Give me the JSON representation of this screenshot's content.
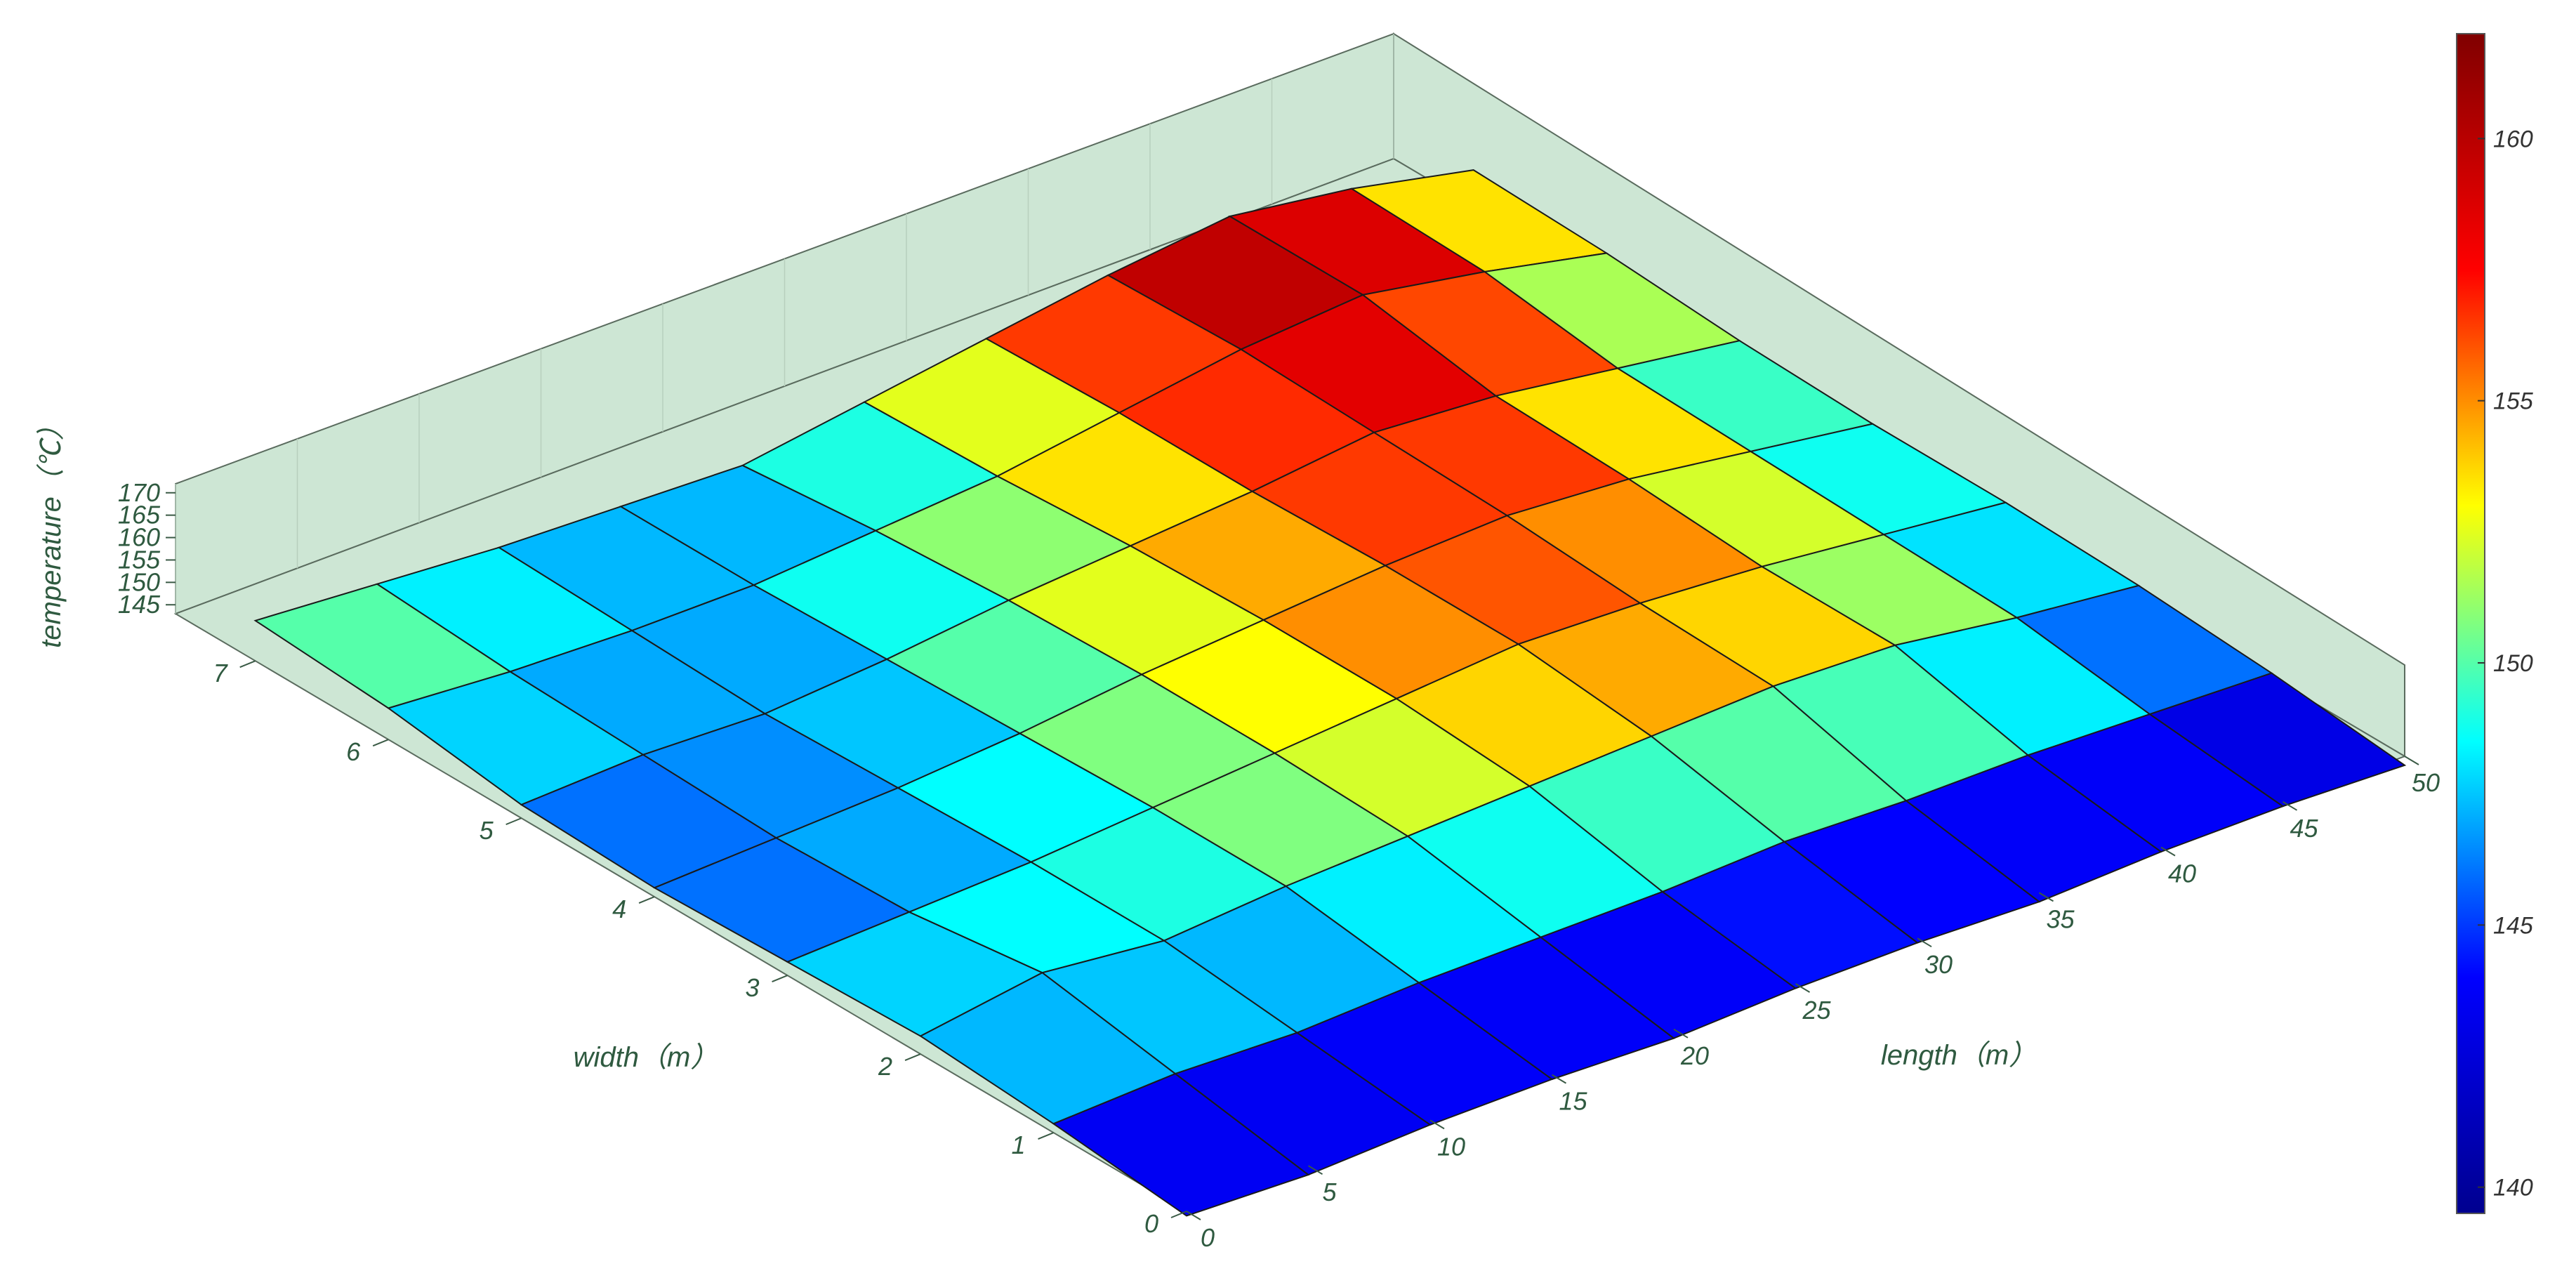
{
  "chart_data": {
    "type": "surface",
    "title": "",
    "axes": {
      "z": {
        "label": "temperature（℃）",
        "ticks": [
          145,
          150,
          155,
          160,
          165,
          170
        ],
        "range": [
          143,
          172
        ]
      },
      "width": {
        "label": "width（m）",
        "ticks": [
          0,
          1,
          2,
          3,
          4,
          5,
          6,
          7
        ],
        "range": [
          0,
          7.6
        ]
      },
      "length": {
        "label": "length（m）",
        "ticks": [
          0,
          5,
          10,
          15,
          20,
          25,
          30,
          35,
          40,
          45,
          50
        ],
        "range": [
          0,
          50
        ]
      }
    },
    "colorbar": {
      "colormap": "jet",
      "range": [
        139.5,
        162
      ],
      "ticks": [
        140,
        145,
        150,
        155,
        160
      ],
      "colors": [
        "#00008f",
        "#0000ff",
        "#00ffff",
        "#ffff00",
        "#ff0000",
        "#800000"
      ]
    },
    "surface": {
      "length": [
        0,
        5,
        10,
        15,
        20,
        25,
        30,
        35,
        40,
        45,
        50
      ],
      "width": [
        0,
        1,
        2,
        3,
        4,
        5,
        6,
        7
      ],
      "temperature": [
        [
          142,
          141,
          142,
          142,
          141,
          142,
          142,
          141,
          142,
          142,
          141
        ],
        [
          145,
          146,
          145,
          146,
          146,
          146,
          147,
          146,
          146,
          145,
          144
        ],
        [
          147,
          151,
          148,
          150,
          151,
          152,
          153,
          154,
          153,
          149,
          146
        ],
        [
          146,
          147,
          148,
          150,
          152,
          154,
          156,
          155,
          153,
          150,
          147
        ],
        [
          145,
          146,
          147,
          149,
          152,
          154,
          156,
          157,
          155,
          151,
          147
        ],
        [
          146,
          147,
          146,
          148,
          151,
          153,
          155,
          158,
          156,
          152,
          148
        ],
        [
          150,
          148,
          147,
          147,
          149,
          151,
          155,
          159,
          161,
          156,
          150
        ],
        [
          152,
          150,
          148,
          147,
          146,
          150,
          154,
          158,
          161,
          157,
          151
        ]
      ]
    }
  }
}
